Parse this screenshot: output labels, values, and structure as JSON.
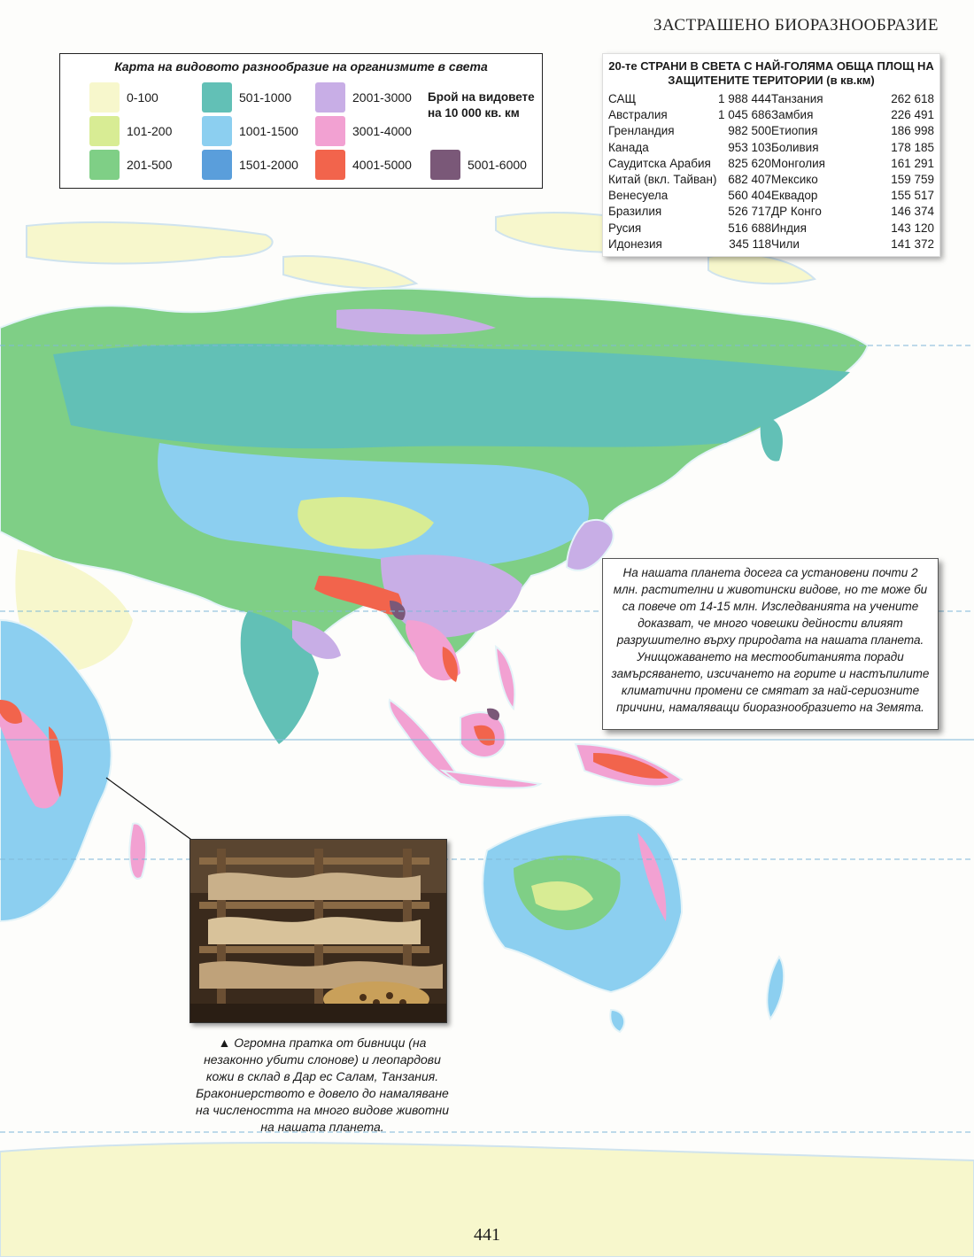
{
  "header": {
    "title": "ЗАСТРАШЕНО БИОРАЗНООБРАЗИЕ"
  },
  "legend": {
    "title": "Карта на видовото разнообразие на организмите в света",
    "unit": "Брой на видовете на 10 000 кв. км",
    "items": [
      {
        "label": "0-100",
        "color": "#f7f7cc"
      },
      {
        "label": "101-200",
        "color": "#d8ec94"
      },
      {
        "label": "201-500",
        "color": "#7fcf86"
      },
      {
        "label": "501-1000",
        "color": "#62c0b6"
      },
      {
        "label": "1001-1500",
        "color": "#8ccff0"
      },
      {
        "label": "1501-2000",
        "color": "#5a9edb"
      },
      {
        "label": "2001-3000",
        "color": "#c8aee6"
      },
      {
        "label": "3001-4000",
        "color": "#f2a1d2"
      },
      {
        "label": "4001-5000",
        "color": "#f2644c"
      },
      {
        "label": "5001-6000",
        "color": "#7a5878"
      }
    ]
  },
  "stats": {
    "title": "20-те СТРАНИ В СВЕТА С НАЙ-ГОЛЯМА ОБЩА ПЛОЩ НА ЗАЩИТЕНИТЕ ТЕРИТОРИИ (в кв.км)",
    "left": [
      {
        "country": "САЩ",
        "value": "1 988 444"
      },
      {
        "country": "Австралия",
        "value": "1 045 686"
      },
      {
        "country": "Гренландия",
        "value": "982 500"
      },
      {
        "country": "Канада",
        "value": "953 103"
      },
      {
        "country": "Саудитска Арабия",
        "value": "825 620"
      },
      {
        "country": "Китай (вкл. Тайван)",
        "value": "682 407"
      },
      {
        "country": "Венесуела",
        "value": "560 404"
      },
      {
        "country": "Бразилия",
        "value": "526 717"
      },
      {
        "country": "Русия",
        "value": "516 688"
      },
      {
        "country": "Идонезия",
        "value": "345 118"
      }
    ],
    "right": [
      {
        "country": "Танзания",
        "value": "262 618"
      },
      {
        "country": "Замбия",
        "value": "226 491"
      },
      {
        "country": "Етиопия",
        "value": "186 998"
      },
      {
        "country": "Боливия",
        "value": "178 185"
      },
      {
        "country": "Монголия",
        "value": "161 291"
      },
      {
        "country": "Мексико",
        "value": "159 759"
      },
      {
        "country": "Еквадор",
        "value": "155 517"
      },
      {
        "country": "ДР Конго",
        "value": "146 374"
      },
      {
        "country": "Индия",
        "value": "143 120"
      },
      {
        "country": "Чили",
        "value": "141 372"
      }
    ]
  },
  "note": {
    "text": "На нашата планета досега са установени почти 2 млн. растителни и животински видове, но те може би са повече от 14-15 млн. Изследванията на учените доказват, че много човешки дейности влияят разрушително върху природата на нашата планета. Унищожаването на местообитанията поради замърсяването, изсичането на горите и настъпилите климатични промени се смятат за най-сериозните причини, намаляващи биоразнообразието на Земята."
  },
  "caption": {
    "text": "▲ Огромна пратка от бивници (на незаконно убити слонове) и леопардови кожи в склад в Дар ес Салам, Танзания. Бракониерството е довело до намаляване на числеността на много видове животни на нашата планета."
  },
  "page": {
    "number": "441"
  }
}
